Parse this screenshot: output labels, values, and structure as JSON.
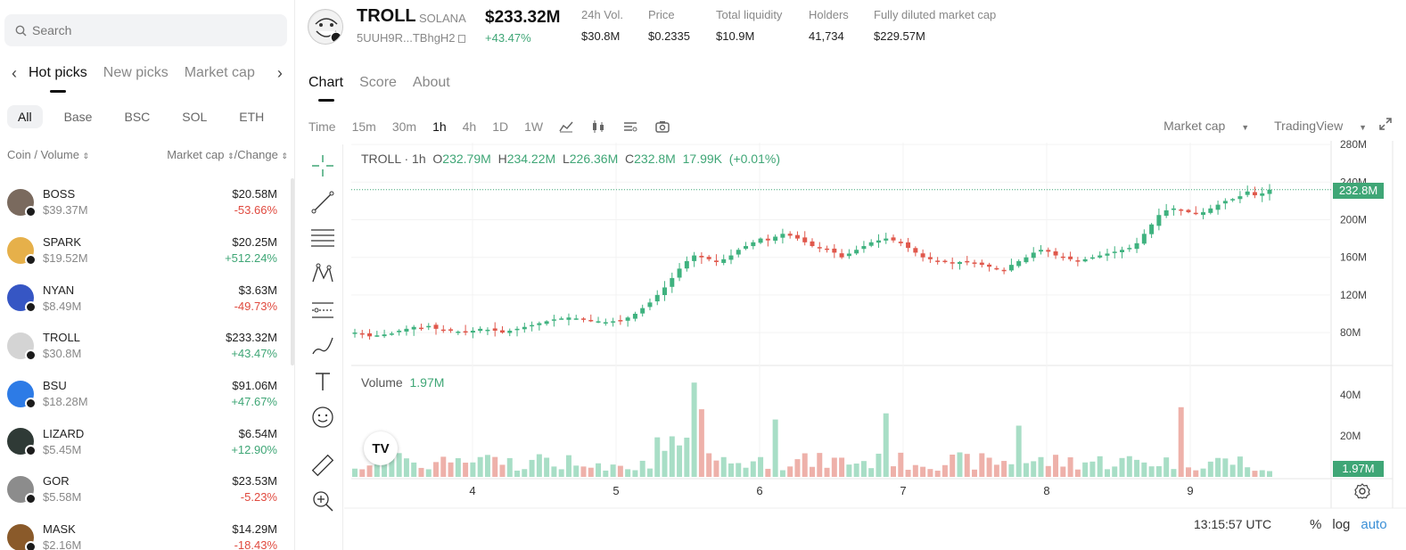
{
  "sidebar": {
    "search_placeholder": "Search",
    "pick_tabs": [
      "Hot picks",
      "New picks",
      "Market cap"
    ],
    "chains": [
      "All",
      "Base",
      "BSC",
      "SOL",
      "ETH"
    ],
    "col_left": "Coin / Volume",
    "col_right": "Market cap",
    "col_right2": "/Change",
    "rows": [
      {
        "symbol": "BOSS",
        "volume": "$39.37M",
        "mcap": "$20.58M",
        "change": "-53.66%",
        "dir": "down",
        "color": "#7a6a5e"
      },
      {
        "symbol": "SPARK",
        "volume": "$19.52M",
        "mcap": "$20.25M",
        "change": "+512.24%",
        "dir": "up",
        "color": "#e6b04a"
      },
      {
        "symbol": "NYAN",
        "volume": "$8.49M",
        "mcap": "$3.63M",
        "change": "-49.73%",
        "dir": "down",
        "color": "#3656c4"
      },
      {
        "symbol": "TROLL",
        "volume": "$30.8M",
        "mcap": "$233.32M",
        "change": "+43.47%",
        "dir": "up",
        "color": "#d4d4d4"
      },
      {
        "symbol": "BSU",
        "volume": "$18.28M",
        "mcap": "$91.06M",
        "change": "+47.67%",
        "dir": "up",
        "color": "#2d7be6"
      },
      {
        "symbol": "LIZARD",
        "volume": "$5.45M",
        "mcap": "$6.54M",
        "change": "+12.90%",
        "dir": "up",
        "color": "#2f3a36"
      },
      {
        "symbol": "GOR",
        "volume": "$5.58M",
        "mcap": "$23.53M",
        "change": "-5.23%",
        "dir": "down",
        "color": "#8c8c8c"
      },
      {
        "symbol": "MASK",
        "volume": "$2.16M",
        "mcap": "$14.29M",
        "change": "-18.43%",
        "dir": "down",
        "color": "#8a5a2a"
      }
    ]
  },
  "header": {
    "name": "TROLL",
    "chain": "SOLANA",
    "address": "5UUH9R...TBhgH2",
    "price": "$233.32M",
    "change": "+43.47%",
    "stats": [
      {
        "label": "24h Vol.",
        "value": "$30.8M"
      },
      {
        "label": "Price",
        "value": "$0.2335"
      },
      {
        "label": "Total liquidity",
        "value": "$10.9M"
      },
      {
        "label": "Holders",
        "value": "41,734"
      },
      {
        "label": "Fully diluted market cap",
        "value": "$229.57M"
      }
    ]
  },
  "chart_tabs": [
    "Chart",
    "Score",
    "About"
  ],
  "toolbar": {
    "timeframes": [
      "Time",
      "15m",
      "30m",
      "1h",
      "4h",
      "1D",
      "1W"
    ],
    "market_cap": "Market cap",
    "tradingview": "TradingView"
  },
  "legend": {
    "symbol": "TROLL · 1h",
    "o_label": "O",
    "o": "232.79M",
    "h_label": "H",
    "h": "234.22M",
    "l_label": "L",
    "l": "226.36M",
    "c_label": "C",
    "c": "232.8M",
    "vol": "17.99K",
    "chg": "(+0.01%)",
    "volume_label": "Volume",
    "volume_value": "1.97M"
  },
  "price_flag": "232.8M",
  "volume_flag": "1.97M",
  "tv_logo": "TV",
  "time_display": "13:15:57 UTC",
  "scale_options": [
    "%",
    "log",
    "auto"
  ],
  "chart_data": {
    "type": "candlestick",
    "x_ticks": [
      "4",
      "5",
      "6",
      "7",
      "8",
      "9"
    ],
    "price_ticks": [
      "280M",
      "240M",
      "200M",
      "160M",
      "120M",
      "80M"
    ],
    "price_tick_values": [
      280,
      240,
      200,
      160,
      120,
      80
    ],
    "volume_ticks": [
      "40M",
      "20M"
    ],
    "volume_tick_values": [
      40,
      20
    ],
    "ylim": [
      45,
      282
    ],
    "vol_ylim": [
      0,
      50
    ],
    "close_path": [
      80,
      78,
      76,
      77,
      78,
      79,
      82,
      84,
      86,
      85,
      87,
      84,
      83,
      82,
      81,
      80,
      82,
      84,
      83,
      82,
      80,
      82,
      84,
      86,
      88,
      90,
      92,
      94,
      95,
      96,
      95,
      94,
      93,
      92,
      91,
      92,
      93,
      96,
      100,
      106,
      112,
      120,
      128,
      138,
      148,
      156,
      162,
      160,
      158,
      155,
      158,
      162,
      168,
      172,
      176,
      180,
      178,
      182,
      185,
      183,
      180,
      176,
      172,
      170,
      168,
      165,
      160,
      164,
      168,
      172,
      176,
      178,
      180,
      178,
      175,
      170,
      165,
      160,
      158,
      156,
      155,
      154,
      155,
      156,
      154,
      152,
      150,
      148,
      146,
      152,
      156,
      160,
      165,
      168,
      166,
      162,
      160,
      158,
      156,
      158,
      160,
      162,
      164,
      166,
      168,
      170,
      175,
      185,
      195,
      205,
      210,
      212,
      210,
      208,
      206,
      208,
      212,
      216,
      220,
      222,
      225,
      230,
      226,
      228,
      232
    ]
  }
}
